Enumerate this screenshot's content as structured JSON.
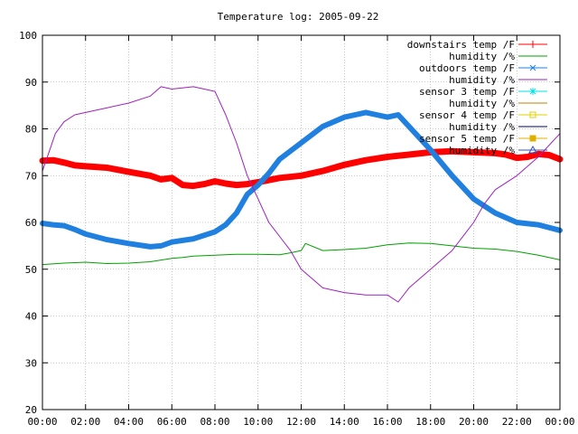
{
  "chart_data": {
    "type": "line",
    "title": "Temperature log: 2005-09-22",
    "xlabel": "",
    "ylabel": "",
    "xlim": [
      "00:00",
      "24:00"
    ],
    "ylim": [
      20,
      100
    ],
    "x_ticks": [
      "00:00",
      "02:00",
      "04:00",
      "06:00",
      "08:00",
      "10:00",
      "12:00",
      "14:00",
      "16:00",
      "18:00",
      "20:00",
      "22:00",
      "00:00"
    ],
    "y_ticks": [
      20,
      30,
      40,
      50,
      60,
      70,
      80,
      90,
      100
    ],
    "grid": true,
    "legend_position": "top-right",
    "x_unit": "hours",
    "series": [
      {
        "name": "downstairs temp /F",
        "color": "#ff0000",
        "marker": "plus",
        "style": "thick",
        "x": [
          0,
          0.5,
          1,
          1.5,
          2,
          3,
          4,
          5,
          5.5,
          6,
          6.5,
          7,
          7.5,
          8,
          8.5,
          9,
          9.5,
          10,
          11,
          12,
          13,
          14,
          15,
          16,
          17,
          18,
          19,
          20,
          21,
          21.5,
          22,
          22.5,
          23,
          23.5,
          24
        ],
        "values": [
          73.2,
          73.3,
          72.8,
          72.2,
          72,
          71.7,
          70.8,
          70,
          69.2,
          69.5,
          68,
          67.8,
          68.2,
          68.8,
          68.3,
          68,
          68.2,
          68.6,
          69.5,
          70,
          71,
          72.3,
          73.3,
          74,
          74.5,
          75,
          75.2,
          75,
          74.8,
          74.5,
          73.8,
          74,
          74.6,
          74.4,
          73.5
        ]
      },
      {
        "name": "humidity /%",
        "color": "#00a000",
        "marker": "none",
        "style": "thin",
        "x": [
          0,
          1,
          2,
          3,
          4,
          5,
          6,
          6.5,
          7,
          8,
          9,
          10,
          11,
          11.5,
          12,
          12.2,
          13,
          14,
          15,
          16,
          17,
          18,
          19,
          20,
          21,
          22,
          23,
          24
        ],
        "values": [
          51,
          51.3,
          51.5,
          51.2,
          51.3,
          51.6,
          52.3,
          52.5,
          52.8,
          53,
          53.2,
          53.2,
          53.1,
          53.5,
          54,
          55.5,
          54,
          54.2,
          54.5,
          55.2,
          55.6,
          55.5,
          55,
          54.5,
          54.3,
          53.8,
          53,
          52
        ]
      },
      {
        "name": "outdoors temp /F",
        "color": "#2080e0",
        "marker": "cross",
        "style": "thick",
        "x": [
          0,
          0.5,
          1,
          1.5,
          2,
          3,
          4,
          5,
          5.5,
          6,
          7,
          8,
          8.5,
          9,
          9.5,
          10,
          10.5,
          11,
          12,
          13,
          14,
          15,
          15.5,
          16,
          16.5,
          17,
          18,
          19,
          20,
          21,
          22,
          23,
          24
        ],
        "values": [
          59.8,
          59.5,
          59.3,
          58.5,
          57.5,
          56.3,
          55.5,
          54.8,
          55,
          55.8,
          56.5,
          58,
          59.5,
          62,
          66,
          68,
          70.5,
          73.5,
          77,
          80.5,
          82.5,
          83.5,
          83,
          82.5,
          83,
          80.5,
          75.5,
          70,
          65,
          62,
          60,
          59.5,
          58.3
        ]
      },
      {
        "name": "humidity /%",
        "color": "#a020c0",
        "marker": "none",
        "style": "thin",
        "x": [
          0,
          0.3,
          0.6,
          1,
          1.5,
          2,
          3,
          4,
          5,
          5.5,
          6,
          7,
          8,
          8.5,
          9,
          9.5,
          10,
          10.5,
          11,
          11.5,
          12,
          13,
          14,
          15,
          16,
          16.5,
          17,
          18,
          19,
          20,
          20.5,
          21,
          22,
          23,
          24
        ],
        "values": [
          71,
          75,
          79,
          81.5,
          83,
          83.5,
          84.5,
          85.5,
          87,
          89,
          88.5,
          89,
          88,
          83,
          77,
          70,
          65,
          60,
          57,
          54,
          50,
          46,
          45,
          44.5,
          44.5,
          43,
          46,
          50,
          54,
          60,
          64,
          67,
          70,
          74,
          79
        ]
      },
      {
        "name": "sensor 3 temp /F",
        "color": "#00e0e0",
        "marker": "star",
        "x": [],
        "values": []
      },
      {
        "name": "humidity /%",
        "color": "#c08000",
        "marker": "none",
        "x": [],
        "values": []
      },
      {
        "name": "sensor 4 temp /F",
        "color": "#e0d000",
        "marker": "open-square",
        "x": [],
        "values": []
      },
      {
        "name": "humidity /%",
        "color": "#000060",
        "marker": "none",
        "x": [],
        "values": []
      },
      {
        "name": "sensor 5 temp /F",
        "color": "#e0b000",
        "marker": "filled-square",
        "x": [],
        "values": []
      },
      {
        "name": "humidity /%",
        "color": "#3050c0",
        "marker": "triangle",
        "x": [],
        "values": []
      }
    ]
  }
}
